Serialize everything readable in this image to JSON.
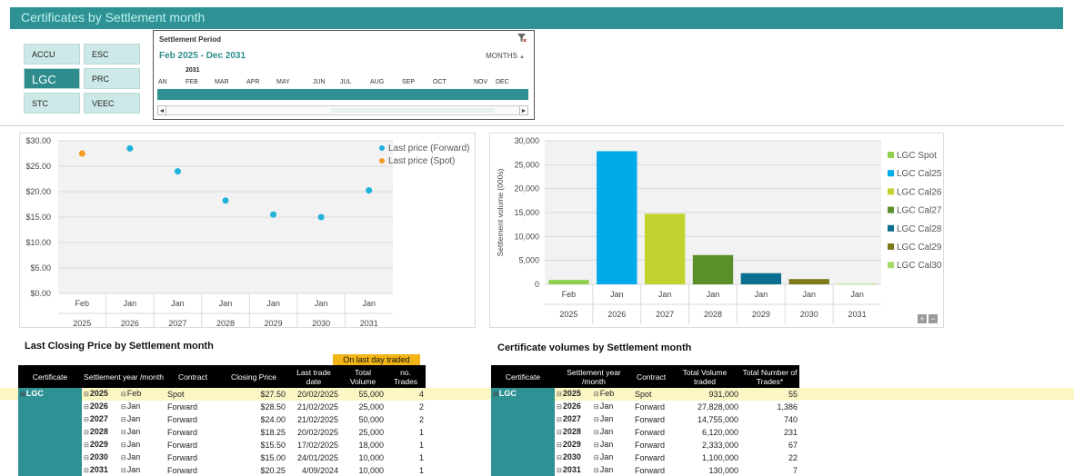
{
  "header": {
    "title": "Certificates by Settlement month"
  },
  "slicer": {
    "items": [
      {
        "label": "ACCU"
      },
      {
        "label": "ESC"
      },
      {
        "label": "LGC"
      },
      {
        "label": "PRC"
      },
      {
        "label": "STC"
      },
      {
        "label": "VEEC"
      }
    ],
    "selected": "LGC"
  },
  "timeline": {
    "header": "Settlement Period",
    "range": "Feb 2025 - Dec 2031",
    "level": "MONTHS",
    "year": "2031",
    "months": [
      "AN",
      "FEB",
      "MAR",
      "APR",
      "MAY",
      "JUN",
      "JUL",
      "AUG",
      "SEP",
      "OCT",
      "NOV",
      "DEC"
    ],
    "filter_icon": "clear-filter-icon",
    "scroll_left": "◄",
    "scroll_right": "►"
  },
  "chart_data": [
    {
      "type": "scatter",
      "categories": [
        [
          "Feb",
          "2025"
        ],
        [
          "Jan",
          "2026"
        ],
        [
          "Jan",
          "2027"
        ],
        [
          "Jan",
          "2028"
        ],
        [
          "Jan",
          "2029"
        ],
        [
          "Jan",
          "2030"
        ],
        [
          "Jan",
          "2031"
        ]
      ],
      "yticks": [
        "$0.00",
        "$5.00",
        "$10.00",
        "$15.00",
        "$20.00",
        "$25.00",
        "$30.00"
      ],
      "ylim": [
        0,
        30
      ],
      "series": [
        {
          "name": "Last price (Forward)",
          "color": "#1fb2dc",
          "values": [
            null,
            28.5,
            24.0,
            18.25,
            15.5,
            15.0,
            20.25
          ]
        },
        {
          "name": "Last price (Spot)",
          "color": "#f59a23",
          "values": [
            27.5,
            null,
            null,
            null,
            null,
            null,
            null
          ]
        }
      ],
      "legend": "right",
      "grid": true
    },
    {
      "type": "bar",
      "categories": [
        [
          "Feb",
          "2025"
        ],
        [
          "Jan",
          "2026"
        ],
        [
          "Jan",
          "2027"
        ],
        [
          "Jan",
          "2028"
        ],
        [
          "Jan",
          "2029"
        ],
        [
          "Jan",
          "2030"
        ],
        [
          "Jan",
          "2031"
        ]
      ],
      "ylabel": "Settlement volume (000s)",
      "yticks": [
        "0",
        "5,000",
        "10,000",
        "15,000",
        "20,000",
        "25,000",
        "30,000"
      ],
      "ylim": [
        0,
        30000
      ],
      "series": [
        {
          "name": "LGC Spot",
          "color": "#8fd14f",
          "value": 931
        },
        {
          "name": "LGC Cal25",
          "color": "#00a9e8",
          "value": 27828
        },
        {
          "name": "LGC Cal26",
          "color": "#c2d22e",
          "value": 14755
        },
        {
          "name": "LGC Cal27",
          "color": "#5a8f29",
          "value": 6120
        },
        {
          "name": "LGC Cal28",
          "color": "#0a6e8e",
          "value": 2333
        },
        {
          "name": "LGC Cal29",
          "color": "#7d7a1c",
          "value": 1100
        },
        {
          "name": "LGC Cal30",
          "color": "#a6d96a",
          "value": 130
        }
      ],
      "legend": "right",
      "grid": true,
      "zoom_in": "+",
      "zoom_out": "−"
    }
  ],
  "price_table": {
    "title": "Last Closing Price by Settlement month",
    "banner": "On last day traded",
    "headers": [
      "Certificate",
      "Settlement year /month",
      "Contract",
      "Closing Price",
      "Last trade date",
      "Total Volume",
      "no. Trades"
    ],
    "certificate": "LGC",
    "rows": [
      {
        "year": "2025",
        "month": "Feb",
        "contract": "Spot",
        "price": "$27.50",
        "date": "20/02/2025",
        "volume": "55,000",
        "trades": "4"
      },
      {
        "year": "2026",
        "month": "Jan",
        "contract": "Forward",
        "price": "$28.50",
        "date": "21/02/2025",
        "volume": "25,000",
        "trades": "2"
      },
      {
        "year": "2027",
        "month": "Jan",
        "contract": "Forward",
        "price": "$24.00",
        "date": "21/02/2025",
        "volume": "50,000",
        "trades": "2"
      },
      {
        "year": "2028",
        "month": "Jan",
        "contract": "Forward",
        "price": "$18.25",
        "date": "20/02/2025",
        "volume": "25,000",
        "trades": "1"
      },
      {
        "year": "2029",
        "month": "Jan",
        "contract": "Forward",
        "price": "$15.50",
        "date": "17/02/2025",
        "volume": "18,000",
        "trades": "1"
      },
      {
        "year": "2030",
        "month": "Jan",
        "contract": "Forward",
        "price": "$15.00",
        "date": "24/01/2025",
        "volume": "10,000",
        "trades": "1"
      },
      {
        "year": "2031",
        "month": "Jan",
        "contract": "Forward",
        "price": "$20.25",
        "date": "4/09/2024",
        "volume": "10,000",
        "trades": "1"
      }
    ]
  },
  "volume_table": {
    "title": "Certificate volumes by Settlement month",
    "headers": [
      "Certificate",
      "Settlement year /month",
      "Contract",
      "Total Volume traded",
      "Total Number of Trades*"
    ],
    "certificate": "LGC",
    "rows": [
      {
        "year": "2025",
        "month": "Feb",
        "contract": "Spot",
        "volume": "931,000",
        "trades": "55"
      },
      {
        "year": "2026",
        "month": "Jan",
        "contract": "Forward",
        "volume": "27,828,000",
        "trades": "1,386"
      },
      {
        "year": "2027",
        "month": "Jan",
        "contract": "Forward",
        "volume": "14,755,000",
        "trades": "740"
      },
      {
        "year": "2028",
        "month": "Jan",
        "contract": "Forward",
        "volume": "6,120,000",
        "trades": "231"
      },
      {
        "year": "2029",
        "month": "Jan",
        "contract": "Forward",
        "volume": "2,333,000",
        "trades": "67"
      },
      {
        "year": "2030",
        "month": "Jan",
        "contract": "Forward",
        "volume": "1,100,000",
        "trades": "22"
      },
      {
        "year": "2031",
        "month": "Jan",
        "contract": "Forward",
        "volume": "130,000",
        "trades": "7"
      }
    ]
  },
  "toggle": {
    "collapse": "⊟"
  }
}
